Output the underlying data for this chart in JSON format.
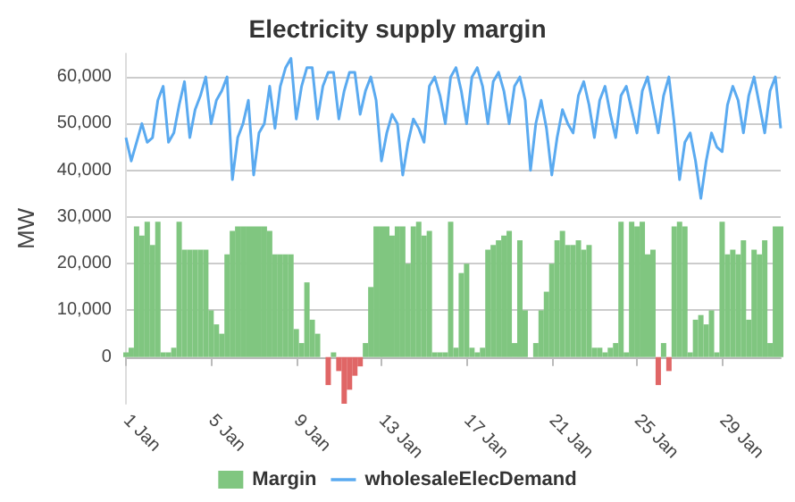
{
  "chart_data": {
    "type": "line",
    "title": "Electricity supply margin",
    "ylabel": "MW",
    "x": [
      "--01-01T00:00",
      "--01-01T06:00",
      "--01-01T12:00",
      "--01-01T18:00",
      "--01-02T00:00",
      "--01-02T06:00",
      "--01-02T12:00",
      "--01-02T18:00",
      "--01-03T00:00",
      "--01-03T06:00",
      "--01-03T12:00",
      "--01-03T18:00",
      "--01-04T00:00",
      "--01-04T06:00",
      "--01-04T12:00",
      "--01-04T18:00",
      "--01-05T00:00",
      "--01-05T06:00",
      "--01-05T12:00",
      "--01-05T18:00",
      "--01-06T00:00",
      "--01-06T06:00",
      "--01-06T12:00",
      "--01-06T18:00",
      "--01-07T00:00",
      "--01-07T06:00",
      "--01-07T12:00",
      "--01-07T18:00",
      "--01-08T00:00",
      "--01-08T06:00",
      "--01-08T12:00",
      "--01-08T18:00",
      "--01-09T00:00",
      "--01-09T06:00",
      "--01-09T12:00",
      "--01-09T18:00",
      "--01-10T00:00",
      "--01-10T06:00",
      "--01-10T12:00",
      "--01-10T18:00",
      "--01-11T00:00",
      "--01-11T06:00",
      "--01-11T12:00",
      "--01-11T18:00",
      "--01-12T00:00",
      "--01-12T06:00",
      "--01-12T12:00",
      "--01-12T18:00",
      "--01-13T00:00",
      "--01-13T06:00",
      "--01-13T12:00",
      "--01-13T18:00",
      "--01-14T00:00",
      "--01-14T06:00",
      "--01-14T12:00",
      "--01-14T18:00",
      "--01-15T00:00",
      "--01-15T06:00",
      "--01-15T12:00",
      "--01-15T18:00",
      "--01-16T00:00",
      "--01-16T06:00",
      "--01-16T12:00",
      "--01-16T18:00",
      "--01-17T00:00",
      "--01-17T06:00",
      "--01-17T12:00",
      "--01-17T18:00",
      "--01-18T00:00",
      "--01-18T06:00",
      "--01-18T12:00",
      "--01-18T18:00",
      "--01-19T00:00",
      "--01-19T06:00",
      "--01-19T12:00",
      "--01-19T18:00",
      "--01-20T00:00",
      "--01-20T06:00",
      "--01-20T12:00",
      "--01-20T18:00",
      "--01-21T00:00",
      "--01-21T06:00",
      "--01-21T12:00",
      "--01-21T18:00",
      "--01-22T00:00",
      "--01-22T06:00",
      "--01-22T12:00",
      "--01-22T18:00",
      "--01-23T00:00",
      "--01-23T06:00",
      "--01-23T12:00",
      "--01-23T18:00",
      "--01-24T00:00",
      "--01-24T06:00",
      "--01-24T12:00",
      "--01-24T18:00",
      "--01-25T00:00",
      "--01-25T06:00",
      "--01-25T12:00",
      "--01-25T18:00",
      "--01-26T00:00",
      "--01-26T06:00",
      "--01-26T12:00",
      "--01-26T18:00",
      "--01-27T00:00",
      "--01-27T06:00",
      "--01-27T12:00",
      "--01-27T18:00",
      "--01-28T00:00",
      "--01-28T06:00",
      "--01-28T12:00",
      "--01-28T18:00",
      "--01-29T00:00",
      "--01-29T06:00",
      "--01-29T12:00",
      "--01-29T18:00",
      "--01-30T00:00",
      "--01-30T06:00",
      "--01-30T12:00",
      "--01-30T18:00",
      "--01-31T00:00",
      "--01-31T06:00",
      "--01-31T12:00",
      "--01-31T18:00"
    ],
    "series": [
      {
        "name": "Margin",
        "type": "bar",
        "color": "#80c680",
        "values": [
          1000,
          2000,
          28000,
          26000,
          29000,
          24000,
          29000,
          1000,
          1000,
          2000,
          29000,
          23000,
          23000,
          23000,
          23000,
          23000,
          10000,
          7000,
          5000,
          22000,
          27000,
          28000,
          28000,
          28000,
          28000,
          28000,
          28000,
          27000,
          22000,
          22000,
          22000,
          22000,
          6000,
          3000,
          16000,
          8000,
          5000,
          0,
          -6000,
          1000,
          -3000,
          -10000,
          -7000,
          -4000,
          -2000,
          3000,
          15000,
          28000,
          28000,
          28000,
          26000,
          28000,
          28000,
          20000,
          28000,
          29000,
          26000,
          27000,
          1000,
          1000,
          1000,
          29000,
          2000,
          18000,
          20000,
          2000,
          1000,
          2000,
          23000,
          24000,
          25000,
          26000,
          27000,
          3000,
          25000,
          10000,
          0,
          3000,
          10000,
          14000,
          20000,
          25000,
          27000,
          24000,
          24000,
          25000,
          23000,
          24000,
          2000,
          2000,
          1000,
          2000,
          3000,
          29000,
          1000,
          29000,
          28000,
          29000,
          22000,
          23000,
          -6000,
          3000,
          -3000,
          28000,
          29000,
          28000,
          1000,
          8000,
          9000,
          7000,
          10000,
          1000,
          29000,
          22000,
          23000,
          22000,
          25000,
          8000,
          23000,
          22000,
          25000,
          3000,
          28000,
          28000
        ],
        "colors": [
          "#80c680",
          "#80c680",
          "#80c680",
          "#80c680",
          "#80c680",
          "#80c680",
          "#80c680",
          "#80c680",
          "#80c680",
          "#80c680",
          "#80c680",
          "#80c680",
          "#80c680",
          "#80c680",
          "#80c680",
          "#80c680",
          "#80c680",
          "#80c680",
          "#80c680",
          "#80c680",
          "#80c680",
          "#80c680",
          "#80c680",
          "#80c680",
          "#80c680",
          "#80c680",
          "#80c680",
          "#80c680",
          "#80c680",
          "#80c680",
          "#80c680",
          "#80c680",
          "#80c680",
          "#80c680",
          "#80c680",
          "#80c680",
          "#80c680",
          "#80c680",
          "#e06666",
          "#80c680",
          "#e06666",
          "#e06666",
          "#e06666",
          "#e06666",
          "#e06666",
          "#80c680",
          "#80c680",
          "#80c680",
          "#80c680",
          "#80c680",
          "#80c680",
          "#80c680",
          "#80c680",
          "#80c680",
          "#80c680",
          "#80c680",
          "#80c680",
          "#80c680",
          "#80c680",
          "#80c680",
          "#80c680",
          "#80c680",
          "#80c680",
          "#80c680",
          "#80c680",
          "#80c680",
          "#80c680",
          "#80c680",
          "#80c680",
          "#80c680",
          "#80c680",
          "#80c680",
          "#80c680",
          "#80c680",
          "#80c680",
          "#80c680",
          "#80c680",
          "#80c680",
          "#80c680",
          "#80c680",
          "#80c680",
          "#80c680",
          "#80c680",
          "#80c680",
          "#80c680",
          "#80c680",
          "#80c680",
          "#80c680",
          "#80c680",
          "#80c680",
          "#80c680",
          "#80c680",
          "#80c680",
          "#80c680",
          "#80c680",
          "#80c680",
          "#80c680",
          "#80c680",
          "#80c680",
          "#80c680",
          "#e06666",
          "#80c680",
          "#e06666",
          "#80c680",
          "#80c680",
          "#80c680",
          "#80c680",
          "#80c680",
          "#80c680",
          "#80c680",
          "#80c680",
          "#80c680",
          "#80c680",
          "#80c680",
          "#80c680",
          "#80c680",
          "#80c680",
          "#80c680",
          "#80c680",
          "#80c680",
          "#80c680",
          "#80c680",
          "#80c680",
          "#80c680"
        ]
      },
      {
        "name": "wholesaleElecDemand",
        "color": "#5aaaf0",
        "values": [
          47000,
          42000,
          46000,
          50000,
          46000,
          47000,
          55000,
          58000,
          46000,
          48000,
          54000,
          59000,
          47000,
          53000,
          56000,
          60000,
          50000,
          55000,
          57000,
          60000,
          38000,
          47000,
          50000,
          55000,
          39000,
          48000,
          50000,
          58000,
          49000,
          58000,
          62000,
          64000,
          51000,
          58000,
          62000,
          62000,
          51000,
          58000,
          61000,
          61000,
          51000,
          57000,
          61000,
          61000,
          52000,
          57000,
          60000,
          55000,
          42000,
          48000,
          52000,
          50000,
          39000,
          46000,
          51000,
          49000,
          46000,
          58000,
          60000,
          56000,
          50000,
          60000,
          62000,
          57000,
          50000,
          60000,
          62000,
          58000,
          50000,
          59000,
          61000,
          57000,
          50000,
          58000,
          60000,
          55000,
          40000,
          50000,
          55000,
          49000,
          39000,
          47000,
          53000,
          50000,
          48000,
          56000,
          59000,
          54000,
          47000,
          55000,
          58000,
          52000,
          47000,
          56000,
          58000,
          53000,
          48000,
          57000,
          60000,
          54000,
          48000,
          56000,
          60000,
          50000,
          38000,
          46000,
          48000,
          42000,
          34000,
          42000,
          48000,
          45000,
          44000,
          54000,
          58000,
          55000,
          48000,
          56000,
          60000,
          54000,
          48000,
          57000,
          60000,
          49000
        ]
      }
    ],
    "xlim": [
      "--01-01T00:00",
      "--01-31T18:00"
    ],
    "xticks": [
      {
        "value": "--01-01",
        "label": "1 Jan"
      },
      {
        "value": "--01-05",
        "label": "5 Jan"
      },
      {
        "value": "--01-09",
        "label": "9 Jan"
      },
      {
        "value": "--01-13",
        "label": "13 Jan"
      },
      {
        "value": "--01-17",
        "label": "17 Jan"
      },
      {
        "value": "--01-21",
        "label": "21 Jan"
      },
      {
        "value": "--01-25",
        "label": "25 Jan"
      },
      {
        "value": "--01-29",
        "label": "29 Jan"
      }
    ],
    "ylim": [
      -10000,
      65000
    ],
    "yticks": [
      {
        "value": 0,
        "label": "0"
      },
      {
        "value": 10000,
        "label": "10,000"
      },
      {
        "value": 20000,
        "label": "20,000"
      },
      {
        "value": 30000,
        "label": "30,000"
      },
      {
        "value": 40000,
        "label": "40,000"
      },
      {
        "value": 50000,
        "label": "50,000"
      },
      {
        "value": 60000,
        "label": "60,000"
      }
    ],
    "grid": "y",
    "legend": "bottom",
    "marker": "none",
    "line_style": "solid"
  }
}
